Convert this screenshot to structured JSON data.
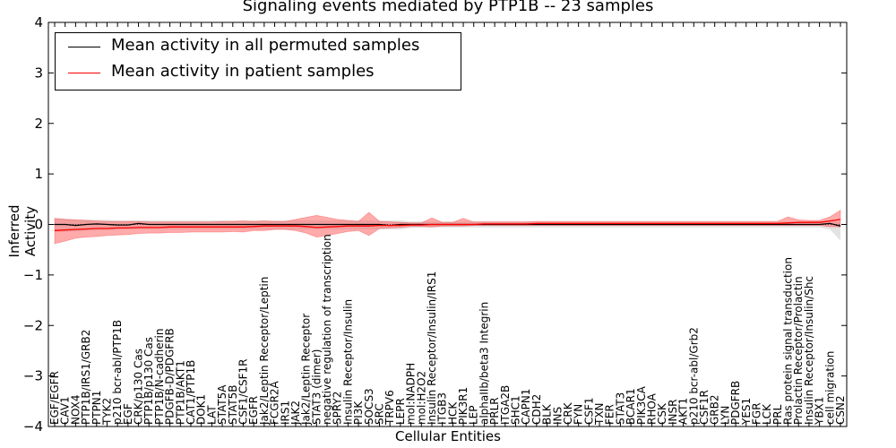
{
  "chart_data": {
    "type": "line",
    "title": "Signaling events mediated by PTP1B -- 23 samples",
    "xlabel": "Cellular Entities",
    "ylabel": "Inferred Activity",
    "ylim": [
      -4,
      4
    ],
    "yticks": [
      -4,
      -3,
      -2,
      -1,
      0,
      1,
      2,
      3,
      4
    ],
    "ytick_labels": [
      "−4",
      "−3",
      "−2",
      "−1",
      "0",
      "1",
      "2",
      "3",
      "4"
    ],
    "legend": {
      "position": "top-left",
      "entries": [
        {
          "label": "Mean activity in all permuted samples",
          "color": "#000000"
        },
        {
          "label": "Mean activity in patient samples",
          "color": "#ff0000"
        }
      ]
    },
    "categories": [
      "EGF/EGFR",
      "CAV1",
      "NOX4",
      "PTP1B/IRS1/GRB2",
      "PTPN1",
      "TYK2",
      "p210 bcr-abl/PTP1B",
      "EGF",
      "CRK/p130 Cas",
      "PTP1B/p130 Cas",
      "PTP1B/N-cadherin",
      "PDGFB-D/PDGFRB",
      "PTP1B/AKT1",
      "CAT1/PTP1B",
      "DOK1",
      "LAT",
      "STAT5A",
      "STAT5B",
      "CSF1/CSF1R",
      "EGFR",
      "Jak2/Leptin Receptor/Leptin",
      "FCGR2A",
      "IRS1",
      "JAK2",
      "Jak2/Leptin Receptor",
      "STAT3 (dimer)",
      "negative regulation of transcription",
      "SPRY2",
      "Insulin Receptor/Insulin",
      "PI3K",
      "SOCS3",
      "SRC",
      "TRPV6",
      "LEPR",
      "mol:NADPH",
      "mol:H2O2",
      "Insulin Receptor/Insulin/IRS1",
      "ITGB3",
      "HCK",
      "PIK3R1",
      "LEP",
      "alphaIIb/beta3 Integrin",
      "PRLR",
      "ITGA2B",
      "SHC1",
      "CAPN1",
      "CDH2",
      "BLK",
      "INS",
      "CRK",
      "FYN",
      "CSF1",
      "TXN",
      "FER",
      "STAT3",
      "BCAR1",
      "PIK3CA",
      "RHOA",
      "CSK",
      "INSR",
      "AKT1",
      "p210 bcr-abl/Grb2",
      "CSF1R",
      "GRB2",
      "LYN",
      "PDGFRB",
      "YES1",
      "FGR",
      "LCK",
      "PRL",
      "Ras protein signal transduction",
      "Prolactin Receptor/Prolactin",
      "Insulin Receptor/Insulin/Shc",
      "YBX1",
      "cell migration",
      "CSN2"
    ],
    "series": [
      {
        "name": "Mean activity in all permuted samples",
        "color": "#000000",
        "band_color": "#cccccc",
        "values": [
          0.0,
          0.0,
          -0.02,
          0.0,
          0.01,
          0.0,
          -0.01,
          -0.01,
          0.02,
          0.0,
          0.0,
          0.0,
          0.0,
          0.0,
          0.0,
          0.0,
          0.0,
          0.0,
          0.0,
          0.0,
          0.0,
          0.0,
          0.0,
          0.0,
          0.0,
          0.0,
          0.0,
          0.0,
          0.0,
          0.0,
          0.0,
          0.0,
          -0.02,
          0.0,
          0.0,
          0.0,
          0.0,
          0.0,
          0.0,
          0.0,
          0.0,
          0.0,
          0.0,
          0.0,
          0.0,
          0.0,
          0.0,
          0.0,
          0.0,
          0.0,
          0.0,
          0.0,
          0.0,
          0.0,
          0.0,
          0.0,
          0.0,
          0.0,
          0.0,
          0.0,
          0.0,
          0.0,
          0.0,
          0.0,
          0.0,
          0.0,
          0.0,
          0.0,
          0.0,
          0.0,
          0.0,
          0.0,
          0.0,
          0.0,
          0.02,
          -0.03
        ],
        "lower": [
          -0.15,
          -0.15,
          -0.14,
          -0.13,
          -0.12,
          -0.12,
          -0.11,
          -0.1,
          -0.1,
          -0.1,
          -0.1,
          -0.1,
          -0.1,
          -0.1,
          -0.1,
          -0.1,
          -0.1,
          -0.1,
          -0.1,
          -0.1,
          -0.1,
          -0.1,
          -0.1,
          -0.1,
          -0.1,
          -0.1,
          -0.1,
          -0.1,
          -0.1,
          -0.1,
          -0.1,
          -0.1,
          -0.1,
          -0.1,
          -0.07,
          -0.06,
          -0.06,
          -0.06,
          -0.06,
          -0.06,
          -0.06,
          -0.06,
          -0.06,
          -0.06,
          -0.06,
          -0.06,
          -0.06,
          -0.06,
          -0.06,
          -0.06,
          -0.06,
          -0.06,
          -0.06,
          -0.06,
          -0.06,
          -0.06,
          -0.06,
          -0.06,
          -0.06,
          -0.06,
          -0.06,
          -0.06,
          -0.06,
          -0.06,
          -0.06,
          -0.06,
          -0.06,
          -0.06,
          -0.06,
          -0.06,
          -0.06,
          -0.06,
          -0.06,
          -0.06,
          -0.1,
          -0.32
        ],
        "upper": [
          0.12,
          0.12,
          0.1,
          0.1,
          0.09,
          0.09,
          0.08,
          0.08,
          0.08,
          0.08,
          0.08,
          0.08,
          0.08,
          0.08,
          0.08,
          0.08,
          0.08,
          0.08,
          0.08,
          0.08,
          0.08,
          0.08,
          0.08,
          0.08,
          0.08,
          0.08,
          0.08,
          0.08,
          0.08,
          0.08,
          0.08,
          0.08,
          0.08,
          0.08,
          0.06,
          0.06,
          0.06,
          0.06,
          0.06,
          0.06,
          0.06,
          0.06,
          0.06,
          0.06,
          0.06,
          0.06,
          0.06,
          0.06,
          0.06,
          0.06,
          0.06,
          0.06,
          0.06,
          0.06,
          0.06,
          0.06,
          0.06,
          0.06,
          0.06,
          0.06,
          0.06,
          0.06,
          0.06,
          0.06,
          0.06,
          0.06,
          0.06,
          0.06,
          0.06,
          0.06,
          0.06,
          0.06,
          0.06,
          0.06,
          0.06,
          0.06
        ]
      },
      {
        "name": "Mean activity in patient samples",
        "color": "#ff0000",
        "band_color": "#ff6666",
        "values": [
          -0.12,
          -0.11,
          -0.1,
          -0.09,
          -0.08,
          -0.08,
          -0.07,
          -0.07,
          -0.06,
          -0.06,
          -0.06,
          -0.05,
          -0.05,
          -0.05,
          -0.05,
          -0.05,
          -0.05,
          -0.05,
          -0.05,
          -0.04,
          -0.03,
          -0.03,
          -0.03,
          -0.03,
          -0.04,
          -0.06,
          -0.05,
          -0.04,
          -0.03,
          -0.03,
          -0.03,
          -0.02,
          -0.02,
          -0.02,
          -0.01,
          -0.01,
          0.0,
          0.0,
          0.0,
          0.0,
          0.0,
          0.01,
          0.01,
          0.01,
          0.01,
          0.01,
          0.02,
          0.02,
          0.02,
          0.02,
          0.02,
          0.02,
          0.02,
          0.02,
          0.02,
          0.02,
          0.02,
          0.02,
          0.02,
          0.02,
          0.02,
          0.02,
          0.02,
          0.02,
          0.02,
          0.02,
          0.02,
          0.02,
          0.02,
          0.02,
          0.03,
          0.04,
          0.04,
          0.04,
          0.07,
          0.1
        ],
        "lower": [
          -0.38,
          -0.33,
          -0.27,
          -0.25,
          -0.24,
          -0.22,
          -0.21,
          -0.2,
          -0.18,
          -0.17,
          -0.17,
          -0.16,
          -0.16,
          -0.15,
          -0.15,
          -0.15,
          -0.15,
          -0.14,
          -0.15,
          -0.12,
          -0.12,
          -0.1,
          -0.1,
          -0.12,
          -0.17,
          -0.25,
          -0.22,
          -0.18,
          -0.14,
          -0.12,
          -0.22,
          -0.08,
          -0.07,
          -0.06,
          -0.04,
          -0.04,
          -0.05,
          -0.03,
          -0.03,
          -0.03,
          -0.02,
          -0.02,
          -0.02,
          -0.02,
          -0.02,
          -0.02,
          -0.02,
          -0.02,
          -0.02,
          -0.02,
          -0.02,
          -0.02,
          -0.02,
          -0.02,
          -0.02,
          -0.02,
          -0.02,
          -0.02,
          -0.02,
          -0.02,
          -0.02,
          -0.02,
          -0.02,
          -0.02,
          -0.02,
          -0.02,
          -0.02,
          -0.02,
          -0.02,
          -0.02,
          -0.02,
          -0.02,
          -0.02,
          -0.02,
          -0.04,
          -0.05
        ],
        "upper": [
          0.12,
          0.1,
          0.09,
          0.08,
          0.07,
          0.06,
          0.06,
          0.06,
          0.06,
          0.05,
          0.05,
          0.05,
          0.05,
          0.05,
          0.05,
          0.05,
          0.06,
          0.06,
          0.07,
          0.06,
          0.07,
          0.06,
          0.06,
          0.1,
          0.14,
          0.18,
          0.14,
          0.1,
          0.08,
          0.06,
          0.24,
          0.06,
          0.05,
          0.04,
          0.03,
          0.03,
          0.13,
          0.04,
          0.04,
          0.12,
          0.05,
          0.05,
          0.05,
          0.05,
          0.05,
          0.05,
          0.06,
          0.06,
          0.06,
          0.06,
          0.06,
          0.06,
          0.06,
          0.06,
          0.06,
          0.06,
          0.06,
          0.06,
          0.06,
          0.06,
          0.06,
          0.06,
          0.06,
          0.06,
          0.06,
          0.06,
          0.06,
          0.06,
          0.06,
          0.06,
          0.15,
          0.09,
          0.08,
          0.08,
          0.15,
          0.28
        ]
      }
    ]
  }
}
